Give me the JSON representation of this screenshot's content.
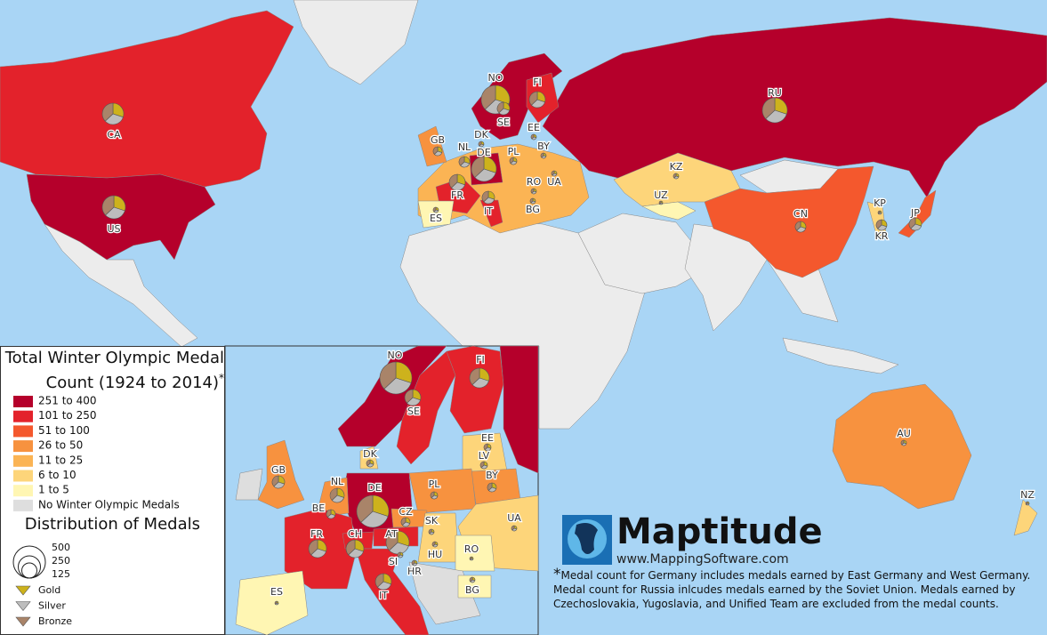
{
  "legend": {
    "title": "Total Winter Olympic Medal Count (1924 to 2014)",
    "title_note": "*",
    "classes": [
      {
        "label": "251 to 400",
        "color": "#b5002b"
      },
      {
        "label": "101 to 250",
        "color": "#e3222b"
      },
      {
        "label": "51 to 100",
        "color": "#f4582d"
      },
      {
        "label": "26 to 50",
        "color": "#f7923f"
      },
      {
        "label": "11 to 25",
        "color": "#fbb454"
      },
      {
        "label": "6 to 10",
        "color": "#fdd57a"
      },
      {
        "label": "1 to 5",
        "color": "#fff6b3"
      },
      {
        "label": "No Winter Olympic Medals",
        "color": "#dedede"
      }
    ],
    "size_title": "Distribution of Medals",
    "sizes": [
      500,
      250,
      125
    ],
    "pie_items": [
      {
        "label": "Gold",
        "color": "#cdb21c"
      },
      {
        "label": "Silver",
        "color": "#bdbdbd"
      },
      {
        "label": "Bronze",
        "color": "#a98469"
      }
    ]
  },
  "main_map": {
    "labels": [
      "CA",
      "US",
      "NO",
      "FI",
      "SE",
      "RU",
      "GB",
      "DK",
      "EE",
      "NL",
      "DE",
      "BY",
      "PL",
      "FR",
      "RO",
      "UA",
      "BG",
      "IT",
      "ES",
      "KZ",
      "UZ",
      "CN",
      "KP",
      "KR",
      "JP",
      "AU",
      "NZ"
    ]
  },
  "inset_map": {
    "labels": [
      "NO",
      "FI",
      "SE",
      "DK",
      "EE",
      "LV",
      "GB",
      "NL",
      "DE",
      "PL",
      "BY",
      "BE",
      "CZ",
      "SK",
      "UA",
      "FR",
      "CH",
      "AT",
      "HU",
      "RO",
      "SI",
      "HR",
      "IT",
      "BG",
      "ES"
    ]
  },
  "logo": {
    "name": "Maptitude",
    "url": "www.MappingSoftware.com"
  },
  "footnote": {
    "mark": "*",
    "text": "Medal count for Germany includes medals earned by East Germany and West Germany. Medal count for Russia inlcudes medals earned by the Soviet Union. Medals earned by Czechoslovakia, Yugoslavia, and Unified Team are excluded from the medal counts."
  }
}
